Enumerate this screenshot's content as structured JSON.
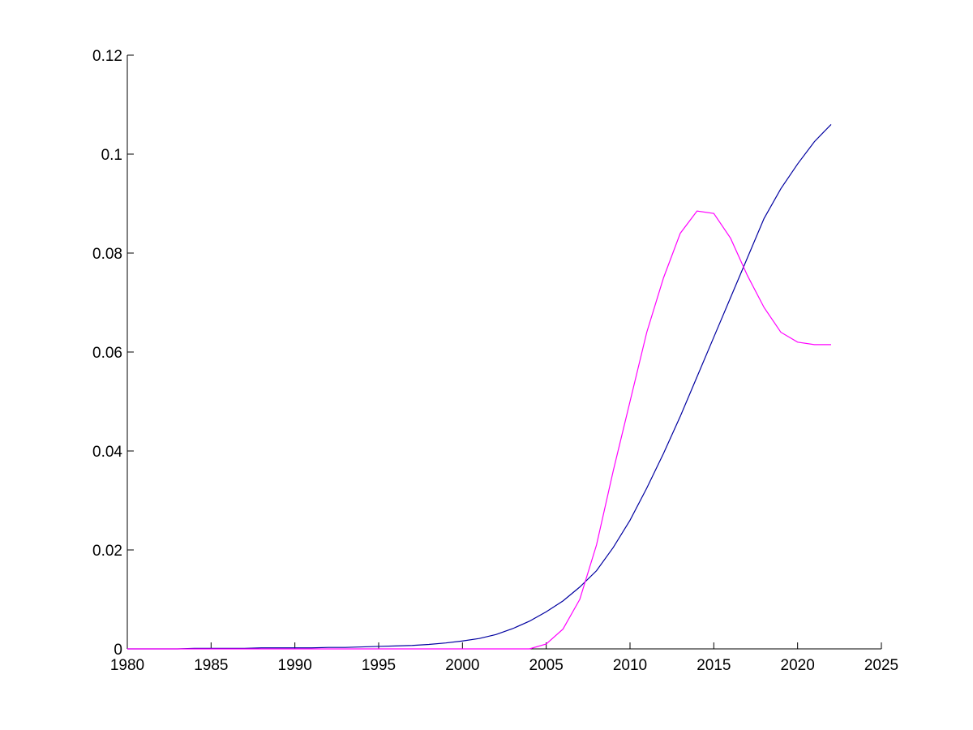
{
  "chart_data": {
    "type": "line",
    "x": [
      1980,
      1981,
      1982,
      1983,
      1984,
      1985,
      1986,
      1987,
      1988,
      1989,
      1990,
      1991,
      1992,
      1993,
      1994,
      1995,
      1996,
      1997,
      1998,
      1999,
      2000,
      2001,
      2002,
      2003,
      2004,
      2005,
      2006,
      2007,
      2008,
      2009,
      2010,
      2011,
      2012,
      2013,
      2014,
      2015,
      2016,
      2017,
      2018,
      2019,
      2020,
      2021,
      2022
    ],
    "series": [
      {
        "color": "#0000a0",
        "values": [
          0,
          0,
          0,
          0,
          0.0001,
          0.0001,
          0.0001,
          0.0001,
          0.0002,
          0.0002,
          0.0002,
          0.0002,
          0.0003,
          0.0003,
          0.0004,
          0.0005,
          0.0006,
          0.0007,
          0.0009,
          0.0012,
          0.0016,
          0.0021,
          0.0029,
          0.0041,
          0.0056,
          0.0075,
          0.0097,
          0.0125,
          0.0158,
          0.0205,
          0.026,
          0.0325,
          0.0395,
          0.047,
          0.055,
          0.063,
          0.071,
          0.079,
          0.087,
          0.093,
          0.098,
          0.1025,
          0.106
        ]
      },
      {
        "color": "#ff00ff",
        "values": [
          0,
          0,
          0,
          0,
          0,
          0,
          0,
          0,
          0,
          0,
          0,
          0,
          0,
          0,
          0,
          0,
          0,
          0,
          0,
          0,
          0,
          0,
          0,
          0,
          0,
          0.001,
          0.004,
          0.01,
          0.021,
          0.036,
          0.05,
          0.064,
          0.075,
          0.084,
          0.0885,
          0.088,
          0.083,
          0.0755,
          0.069,
          0.064,
          0.062,
          0.0615,
          0.0615
        ]
      }
    ],
    "xlim": [
      1980,
      2025
    ],
    "xticks": [
      1980,
      1985,
      1990,
      1995,
      2000,
      2005,
      2010,
      2015,
      2020,
      2025
    ],
    "ylim": [
      0,
      0.12
    ],
    "yticks": [
      0,
      0.02,
      0.04,
      0.06,
      0.08,
      0.1,
      0.12
    ]
  }
}
